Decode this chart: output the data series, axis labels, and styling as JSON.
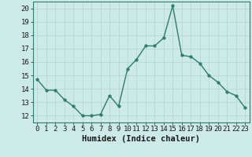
{
  "x": [
    0,
    1,
    2,
    3,
    4,
    5,
    6,
    7,
    8,
    9,
    10,
    11,
    12,
    13,
    14,
    15,
    16,
    17,
    18,
    19,
    20,
    21,
    22,
    23
  ],
  "y": [
    14.7,
    13.9,
    13.9,
    13.2,
    12.7,
    12.0,
    12.0,
    12.1,
    13.5,
    12.7,
    15.5,
    16.2,
    17.2,
    17.2,
    17.8,
    20.2,
    16.5,
    16.4,
    15.9,
    15.0,
    14.5,
    13.8,
    13.5,
    12.6
  ],
  "line_color": "#2e7d6e",
  "marker": "o",
  "marker_size": 2.5,
  "xlabel": "Humidex (Indice chaleur)",
  "xlim": [
    -0.5,
    23.5
  ],
  "ylim": [
    11.5,
    20.5
  ],
  "yticks": [
    12,
    13,
    14,
    15,
    16,
    17,
    18,
    19,
    20
  ],
  "xticks": [
    0,
    1,
    2,
    3,
    4,
    5,
    6,
    7,
    8,
    9,
    10,
    11,
    12,
    13,
    14,
    15,
    16,
    17,
    18,
    19,
    20,
    21,
    22,
    23
  ],
  "background_color": "#cceae7",
  "grid_color": "#b8d8d4",
  "line_width": 1.0,
  "font_size": 6.5,
  "xlabel_fontsize": 7.5
}
